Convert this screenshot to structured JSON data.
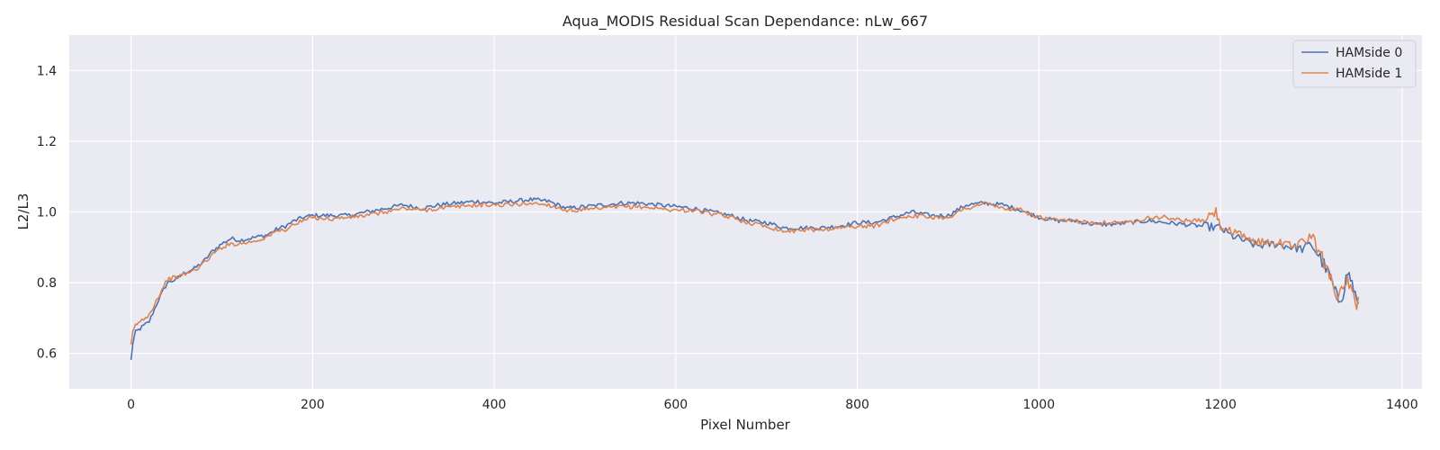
{
  "chart_data": {
    "type": "line",
    "title": "Aqua_MODIS Residual Scan Dependance: nLw_667",
    "xlabel": "Pixel Number",
    "ylabel": "L2/L3",
    "xlim": [
      -68,
      1422
    ],
    "ylim": [
      0.5,
      1.5
    ],
    "xticks": [
      0,
      200,
      400,
      600,
      800,
      1000,
      1200,
      1400
    ],
    "xtick_labels": [
      "0",
      "200",
      "400",
      "600",
      "800",
      "1000",
      "1200",
      "1400"
    ],
    "yticks": [
      0.6,
      0.8,
      1.0,
      1.2,
      1.4
    ],
    "ytick_labels": [
      "0.6",
      "0.8",
      "1.0",
      "1.2",
      "1.4"
    ],
    "grid": true,
    "legend": "top-right",
    "colors": {
      "background": "#eaeaf2",
      "grid": "#ffffff",
      "text": "#262626"
    },
    "series": [
      {
        "name": "HAMside 0",
        "color": "#4c72b0",
        "x": [
          0,
          2,
          5,
          10,
          20,
          30,
          40,
          50,
          60,
          70,
          80,
          90,
          100,
          110,
          120,
          130,
          140,
          150,
          160,
          170,
          180,
          190,
          200,
          220,
          240,
          260,
          280,
          300,
          320,
          340,
          360,
          380,
          400,
          420,
          440,
          460,
          480,
          500,
          520,
          540,
          560,
          580,
          600,
          620,
          640,
          660,
          680,
          700,
          720,
          740,
          760,
          780,
          800,
          820,
          840,
          860,
          880,
          900,
          920,
          940,
          960,
          980,
          1000,
          1020,
          1040,
          1060,
          1080,
          1100,
          1120,
          1140,
          1160,
          1180,
          1200,
          1210,
          1220,
          1240,
          1260,
          1280,
          1290,
          1300,
          1310,
          1320,
          1325,
          1330,
          1335,
          1340,
          1345,
          1350,
          1352
        ],
        "y": [
          0.58,
          0.63,
          0.66,
          0.67,
          0.69,
          0.75,
          0.8,
          0.81,
          0.83,
          0.84,
          0.86,
          0.89,
          0.91,
          0.925,
          0.92,
          0.925,
          0.93,
          0.935,
          0.95,
          0.96,
          0.975,
          0.985,
          0.99,
          0.99,
          0.99,
          1.0,
          1.01,
          1.02,
          1.01,
          1.02,
          1.025,
          1.03,
          1.025,
          1.03,
          1.035,
          1.03,
          1.01,
          1.015,
          1.02,
          1.025,
          1.025,
          1.02,
          1.015,
          1.01,
          1.0,
          0.99,
          0.975,
          0.97,
          0.955,
          0.955,
          0.955,
          0.96,
          0.97,
          0.97,
          0.985,
          1.0,
          0.99,
          0.99,
          1.02,
          1.025,
          1.02,
          1.005,
          0.985,
          0.975,
          0.975,
          0.965,
          0.965,
          0.97,
          0.975,
          0.97,
          0.965,
          0.96,
          0.955,
          0.935,
          0.925,
          0.905,
          0.91,
          0.9,
          0.895,
          0.91,
          0.87,
          0.82,
          0.78,
          0.75,
          0.77,
          0.83,
          0.8,
          0.75,
          0.74
        ]
      },
      {
        "name": "HAMside 1",
        "color": "#dd8452",
        "x": [
          0,
          2,
          5,
          10,
          20,
          30,
          40,
          50,
          60,
          70,
          80,
          90,
          100,
          110,
          120,
          130,
          140,
          150,
          160,
          170,
          180,
          190,
          200,
          220,
          240,
          260,
          280,
          300,
          320,
          340,
          360,
          380,
          400,
          420,
          440,
          460,
          480,
          500,
          520,
          540,
          560,
          580,
          600,
          620,
          640,
          660,
          680,
          700,
          720,
          740,
          760,
          780,
          800,
          820,
          840,
          860,
          880,
          900,
          920,
          940,
          960,
          980,
          1000,
          1020,
          1040,
          1060,
          1080,
          1100,
          1120,
          1140,
          1160,
          1180,
          1195,
          1200,
          1210,
          1220,
          1240,
          1260,
          1280,
          1290,
          1300,
          1310,
          1320,
          1325,
          1330,
          1335,
          1340,
          1345,
          1350,
          1352
        ],
        "y": [
          0.62,
          0.66,
          0.68,
          0.69,
          0.71,
          0.76,
          0.81,
          0.815,
          0.825,
          0.835,
          0.855,
          0.88,
          0.9,
          0.91,
          0.91,
          0.915,
          0.92,
          0.93,
          0.945,
          0.95,
          0.965,
          0.975,
          0.985,
          0.98,
          0.985,
          0.99,
          1.0,
          1.01,
          1.005,
          1.01,
          1.015,
          1.02,
          1.02,
          1.02,
          1.025,
          1.02,
          1.005,
          1.005,
          1.01,
          1.015,
          1.015,
          1.01,
          1.005,
          1.005,
          0.995,
          0.985,
          0.97,
          0.96,
          0.945,
          0.95,
          0.95,
          0.955,
          0.96,
          0.96,
          0.98,
          0.99,
          0.985,
          0.985,
          1.01,
          1.025,
          1.01,
          1.005,
          0.985,
          0.975,
          0.975,
          0.97,
          0.97,
          0.97,
          0.985,
          0.985,
          0.975,
          0.975,
          1.0,
          0.96,
          0.945,
          0.935,
          0.915,
          0.915,
          0.905,
          0.915,
          0.93,
          0.88,
          0.83,
          0.79,
          0.76,
          0.78,
          0.8,
          0.77,
          0.72,
          0.76
        ]
      }
    ]
  }
}
